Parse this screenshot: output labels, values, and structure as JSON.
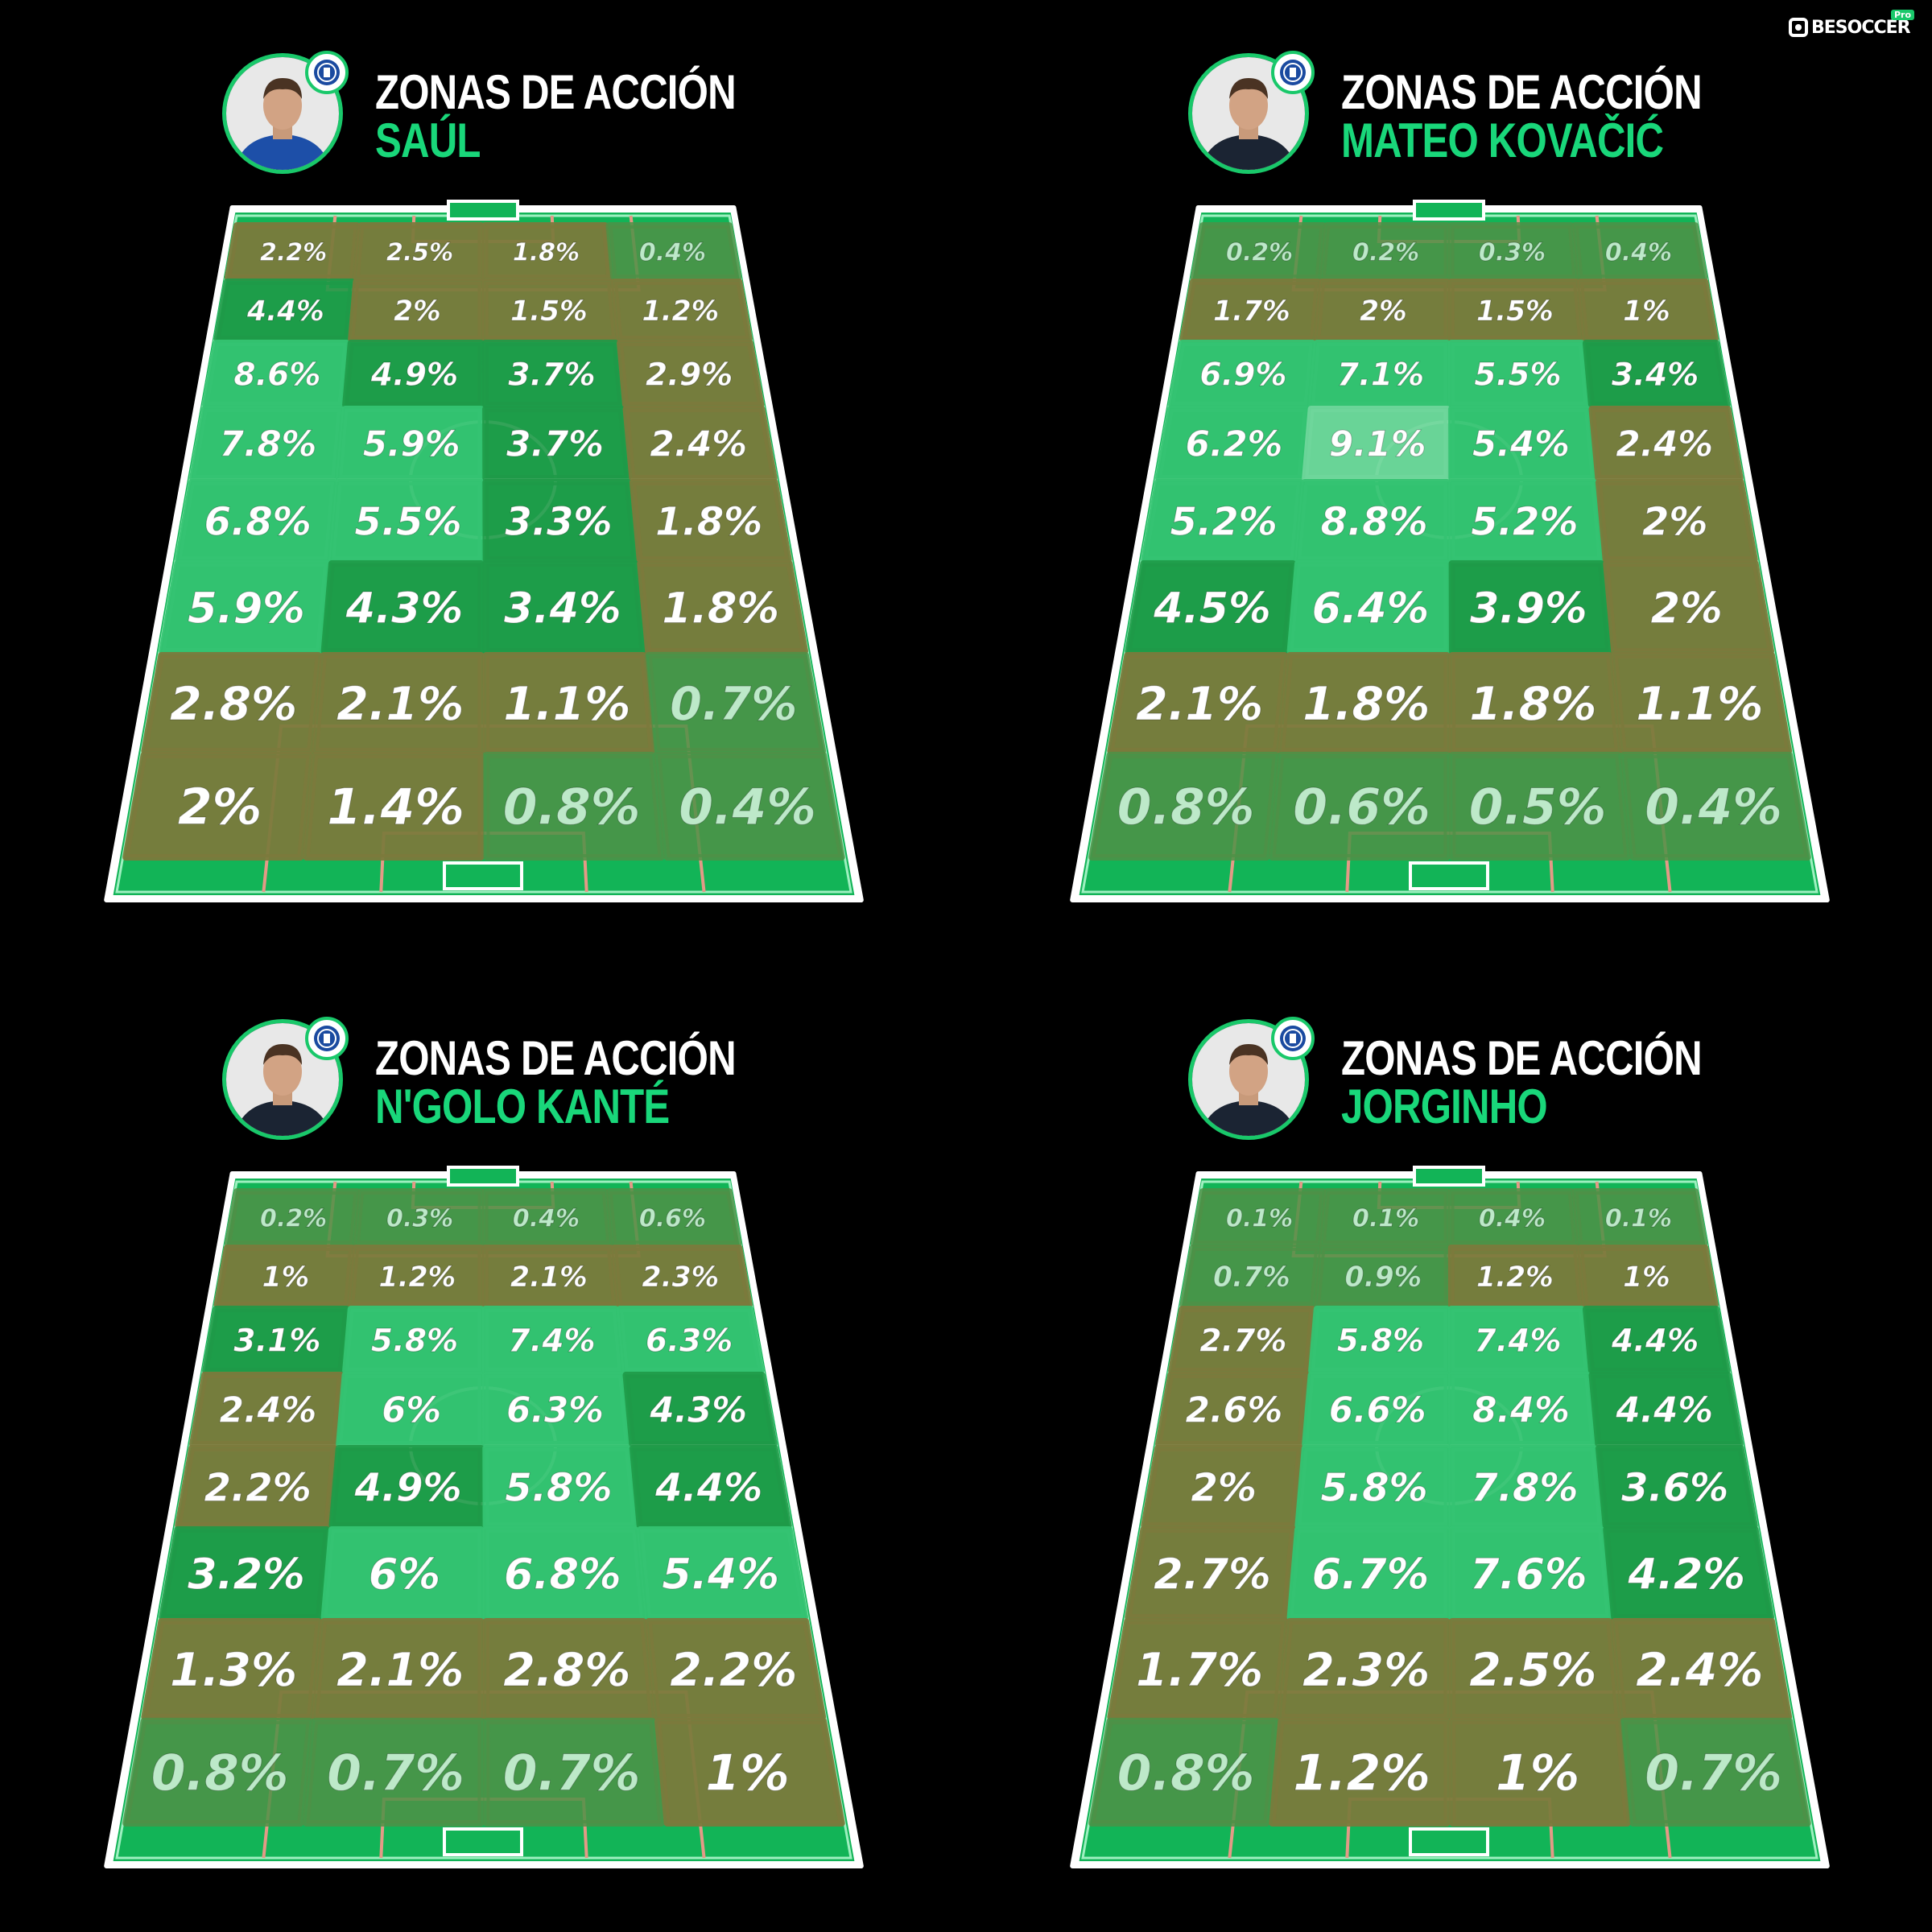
{
  "brand": {
    "name": "BESOCCER",
    "tag": "Pro"
  },
  "players": [
    {
      "title": "ZONAS DE ACCIÓN",
      "name": "SAÚL",
      "shirt": "#1d4fa8",
      "zones": [
        [
          "2.2%",
          "2.5%",
          "1.8%",
          "0.4%"
        ],
        [
          "4.4%",
          "2%",
          "1.5%",
          "1.2%"
        ],
        [
          "8.6%",
          "4.9%",
          "3.7%",
          "2.9%"
        ],
        [
          "7.8%",
          "5.9%",
          "3.7%",
          "2.4%"
        ],
        [
          "6.8%",
          "5.5%",
          "3.3%",
          "1.8%"
        ],
        [
          "5.9%",
          "4.3%",
          "3.4%",
          "1.8%"
        ],
        [
          "2.8%",
          "2.1%",
          "1.1%",
          "0.7%"
        ],
        [
          "2%",
          "1.4%",
          "0.8%",
          "0.4%"
        ]
      ]
    },
    {
      "title": "ZONAS DE ACCIÓN",
      "name": "MATEO KOVAČIĆ",
      "shirt": "#1b2433",
      "zones": [
        [
          "0.2%",
          "0.2%",
          "0.3%",
          "0.4%"
        ],
        [
          "1.7%",
          "2%",
          "1.5%",
          "1%"
        ],
        [
          "6.9%",
          "7.1%",
          "5.5%",
          "3.4%"
        ],
        [
          "6.2%",
          "9.1%",
          "5.4%",
          "2.4%"
        ],
        [
          "5.2%",
          "8.8%",
          "5.2%",
          "2%"
        ],
        [
          "4.5%",
          "6.4%",
          "3.9%",
          "2%"
        ],
        [
          "2.1%",
          "1.8%",
          "1.8%",
          "1.1%"
        ],
        [
          "0.8%",
          "0.6%",
          "0.5%",
          "0.4%"
        ]
      ]
    },
    {
      "title": "ZONAS DE ACCIÓN",
      "name": "N'GOLO KANTÉ",
      "shirt": "#1b2433",
      "zones": [
        [
          "0.2%",
          "0.3%",
          "0.4%",
          "0.6%"
        ],
        [
          "1%",
          "1.2%",
          "2.1%",
          "2.3%"
        ],
        [
          "3.1%",
          "5.8%",
          "7.4%",
          "6.3%"
        ],
        [
          "2.4%",
          "6%",
          "6.3%",
          "4.3%"
        ],
        [
          "2.2%",
          "4.9%",
          "5.8%",
          "4.4%"
        ],
        [
          "3.2%",
          "6%",
          "6.8%",
          "5.4%"
        ],
        [
          "1.3%",
          "2.1%",
          "2.8%",
          "2.2%"
        ],
        [
          "0.8%",
          "0.7%",
          "0.7%",
          "1%"
        ]
      ]
    },
    {
      "title": "ZONAS DE ACCIÓN",
      "name": "JORGINHO",
      "shirt": "#1b2433",
      "zones": [
        [
          "0.1%",
          "0.1%",
          "0.4%",
          "0.1%"
        ],
        [
          "0.7%",
          "0.9%",
          "1.2%",
          "1%"
        ],
        [
          "2.7%",
          "5.8%",
          "7.4%",
          "4.4%"
        ],
        [
          "2.6%",
          "6.6%",
          "8.4%",
          "4.4%"
        ],
        [
          "2%",
          "5.8%",
          "7.8%",
          "3.6%"
        ],
        [
          "2.7%",
          "6.7%",
          "7.6%",
          "4.2%"
        ],
        [
          "1.7%",
          "2.3%",
          "2.5%",
          "2.4%"
        ],
        [
          "0.8%",
          "1.2%",
          "1%",
          "0.7%"
        ]
      ]
    }
  ]
}
